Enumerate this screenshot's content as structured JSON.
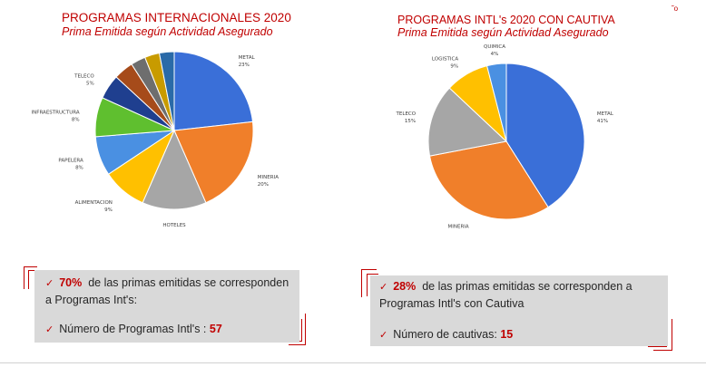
{
  "corner_mark": "˜o",
  "left": {
    "title": "PROGRAMAS INTERNACIONALES 2020",
    "subtitle": "Prima Emitida según Actividad Asegurado"
  },
  "right": {
    "title": "PROGRAMAS INTL's 2020 CON CAUTIVA",
    "subtitle": "Prima Emitida según Actividad Asegurado"
  },
  "chart_data": [
    {
      "type": "pie",
      "title": "PROGRAMAS INTERNACIONALES 2020",
      "subtitle": "Prima Emitida según Actividad Asegurado",
      "slices": [
        {
          "label": "METAL",
          "pct_text": "23%",
          "value": 23,
          "color": "#3a6fd8"
        },
        {
          "label": "MINERIA",
          "pct_text": "20%",
          "value": 20,
          "color": "#f07f2a"
        },
        {
          "label": "HOTELES",
          "pct_text": "",
          "value": 13,
          "color": "#a6a6a6"
        },
        {
          "label": "ALIMENTACION",
          "pct_text": "9%",
          "value": 9,
          "color": "#ffc000"
        },
        {
          "label": "PAPELERA",
          "pct_text": "8%",
          "value": 8,
          "color": "#4a90e2"
        },
        {
          "label": "INFRAESTRUCTURA",
          "pct_text": "8%",
          "value": 8,
          "color": "#5fbf2f"
        },
        {
          "label": "TELECO",
          "pct_text": "5%",
          "value": 5,
          "color": "#1f3f8f"
        },
        {
          "label": "",
          "pct_text": "",
          "value": 4,
          "color": "#a64b1a"
        },
        {
          "label": "",
          "pct_text": "",
          "value": 3,
          "color": "#6e6e6e"
        },
        {
          "label": "",
          "pct_text": "",
          "value": 3,
          "color": "#c89b00"
        },
        {
          "label": "",
          "pct_text": "",
          "value": 3,
          "color": "#2a6aa8"
        }
      ]
    },
    {
      "type": "pie",
      "title": "PROGRAMAS INTL's 2020 CON CAUTIVA",
      "subtitle": "Prima Emitida según Actividad Asegurado",
      "slices": [
        {
          "label": "METAL",
          "pct_text": "41%",
          "value": 41,
          "color": "#3a6fd8"
        },
        {
          "label": "MINERIA",
          "pct_text": "",
          "value": 31,
          "color": "#f07f2a"
        },
        {
          "label": "TELECO",
          "pct_text": "15%",
          "value": 15,
          "color": "#a6a6a6"
        },
        {
          "label": "LOGISTICA",
          "pct_text": "9%",
          "value": 9,
          "color": "#ffc000"
        },
        {
          "label": "QUIMICA",
          "pct_text": "4%",
          "value": 4,
          "color": "#4a90e2"
        }
      ]
    }
  ],
  "box_left": {
    "line1_num": "70%",
    "line1_text": "de las primas emitidas se corresponden a Programas Int's:",
    "line2_text": "Número de Programas Intl's :",
    "line2_num": "57"
  },
  "box_right": {
    "line1_num": "28%",
    "line1_text": "de las primas emitidas se corresponden a Programas Intl's con Cautiva",
    "line2_text": "Número de cautivas:",
    "line2_num": "15"
  }
}
